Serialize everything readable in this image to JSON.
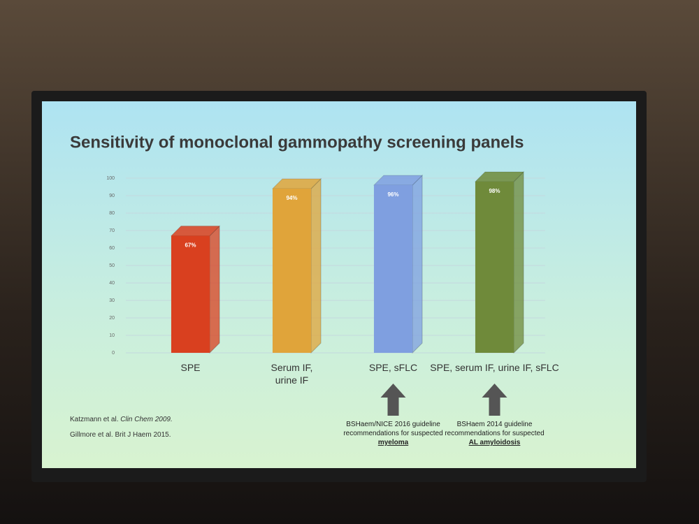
{
  "chart_data": {
    "type": "bar",
    "title": "Sensitivity of monoclonal gammopathy screening panels",
    "categories": [
      "SPE",
      "Serum IF, urine IF",
      "SPE, sFLC",
      "SPE, serum IF, urine IF, sFLC"
    ],
    "values": [
      67,
      94,
      96,
      98
    ],
    "value_labels": [
      "67%",
      "94%",
      "96%",
      "98%"
    ],
    "colors": [
      "#d9401f",
      "#e0a43a",
      "#7f9fe0",
      "#6f8a3a"
    ],
    "ylim": [
      0,
      100
    ],
    "yticks": [
      0,
      10,
      20,
      30,
      40,
      50,
      60,
      70,
      80,
      90,
      100
    ],
    "grid": true,
    "annotations": [
      {
        "text": "BSHaem/NICE 2016 guideline recommendations for suspected",
        "emphasis": "myeloma"
      },
      {
        "text": "BSHaem 2014 guideline recommendations for suspected",
        "emphasis": "AL amyloidosis"
      }
    ],
    "references": [
      {
        "authors": "Katzmann et al.",
        "journal": "Clin Chem 2009."
      },
      {
        "authors": "Gillmore et al.",
        "journal": "Brit J Haem 2015."
      }
    ]
  }
}
